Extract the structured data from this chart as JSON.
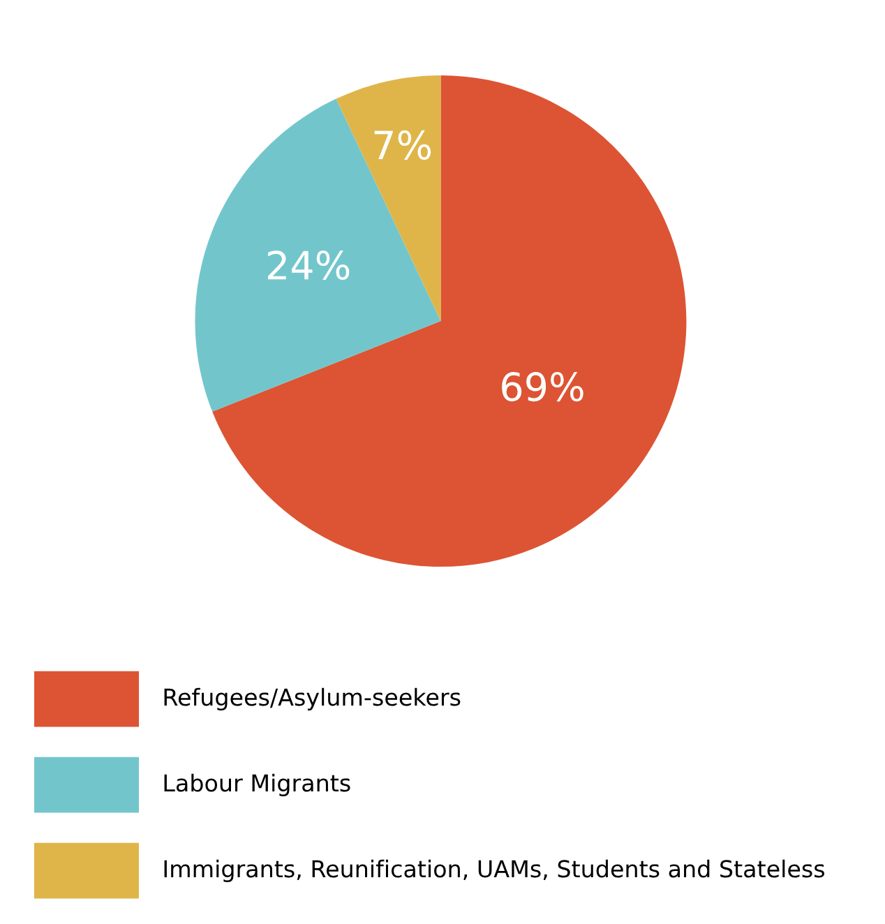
{
  "chart_data": {
    "type": "pie",
    "categories": [
      "Refugees/Asylum-seekers",
      "Labour Migrants",
      "Immigrants, Reunification, UAMs, Students and Stateless"
    ],
    "values": [
      69,
      24,
      7
    ],
    "value_labels": [
      "69%",
      "24%",
      "7%"
    ],
    "colors": [
      "#dc5433",
      "#72c6cb",
      "#dfb54a"
    ],
    "legend": "bottom left"
  }
}
